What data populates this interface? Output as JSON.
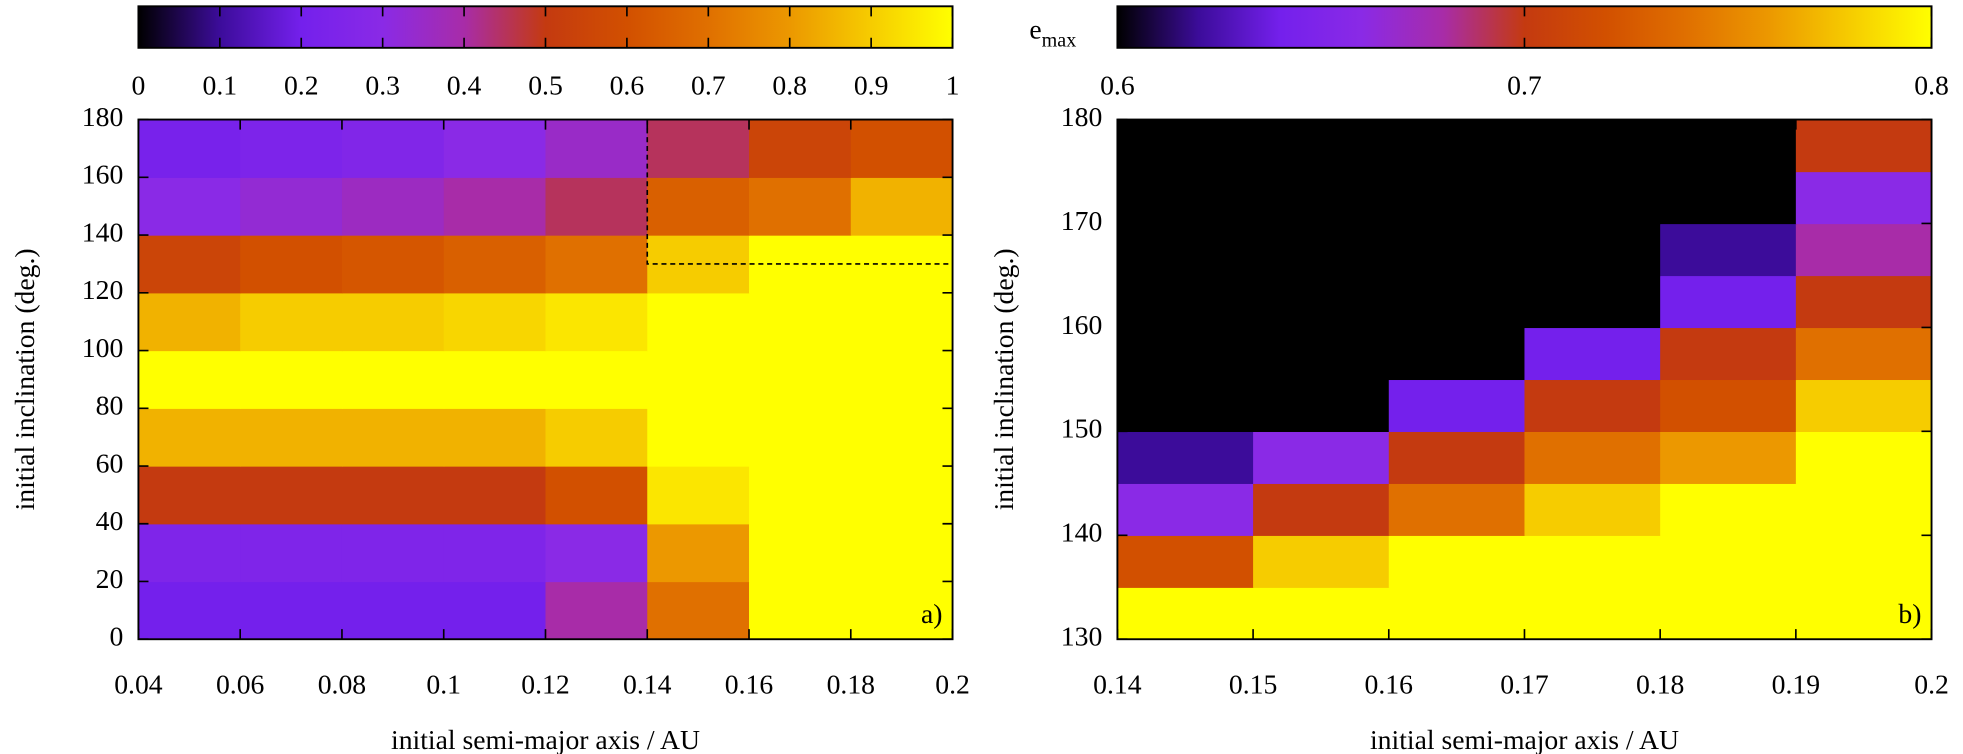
{
  "chart_data": [
    {
      "type": "heatmap",
      "x_label": "initial semi-major axis / AU",
      "y_label": "initial inclination (deg.)",
      "annotation": "a)",
      "x_bins": [
        0.04,
        0.06,
        0.08,
        0.1,
        0.12,
        0.14,
        0.16,
        0.18,
        0.2
      ],
      "y_bins": [
        0,
        20,
        40,
        60,
        80,
        100,
        120,
        140,
        160,
        180
      ],
      "z": [
        [
          0.2,
          0.2,
          0.2,
          0.2,
          0.4,
          0.7,
          1,
          1
        ],
        [
          0.25,
          0.25,
          0.25,
          0.25,
          0.3,
          0.8,
          1,
          1
        ],
        [
          0.5,
          0.5,
          0.5,
          0.5,
          0.6,
          0.95,
          1,
          1
        ],
        [
          0.85,
          0.85,
          0.85,
          0.85,
          0.9,
          1,
          1,
          1
        ],
        [
          1,
          1,
          1,
          1,
          1,
          1,
          1,
          1
        ],
        [
          0.85,
          0.9,
          0.9,
          0.92,
          0.95,
          1,
          1,
          1
        ],
        [
          0.55,
          0.6,
          0.62,
          0.65,
          0.7,
          0.9,
          1,
          1
        ],
        [
          0.3,
          0.33,
          0.36,
          0.4,
          0.45,
          0.65,
          0.7,
          0.85
        ],
        [
          0.22,
          0.24,
          0.26,
          0.3,
          0.35,
          0.45,
          0.55,
          0.6
        ]
      ],
      "xlim": [
        0.04,
        0.2
      ],
      "xticks": [
        0.04,
        0.06,
        0.08,
        0.1,
        0.12,
        0.14,
        0.16,
        0.18,
        0.2
      ],
      "ylim": [
        0,
        180
      ],
      "yticks": [
        0,
        20,
        40,
        60,
        80,
        100,
        120,
        140,
        160,
        180
      ],
      "inset_region": {
        "xlim": [
          0.14,
          0.2
        ],
        "ylim": [
          130,
          180
        ]
      },
      "colorbar_lim": [
        0,
        1
      ],
      "colorbar_ticks": [
        0,
        0.1,
        0.2,
        0.3,
        0.4,
        0.5,
        0.6,
        0.7,
        0.8,
        0.9,
        1
      ],
      "colormap": [
        "#000000",
        "#3c0c9a",
        "#7420ec",
        "#8a2ae6",
        "#a82ca8",
        "#c43a10",
        "#d25000",
        "#e07000",
        "#ec9800",
        "#f6cc00",
        "#ffff00"
      ]
    },
    {
      "type": "heatmap",
      "x_label": "initial semi-major axis / AU",
      "y_label": "initial inclination (deg.)",
      "annotation": "b)",
      "colorbar_label": {
        "base": "e",
        "subscript": "max"
      },
      "x_bins": [
        0.14,
        0.15,
        0.16,
        0.17,
        0.18,
        0.19,
        0.2
      ],
      "y_bins": [
        130,
        135,
        140,
        145,
        150,
        155,
        160,
        165,
        170,
        175,
        180
      ],
      "z": [
        [
          0.85,
          0.85,
          0.85,
          0.85,
          0.85,
          0.85
        ],
        [
          0.72,
          0.78,
          0.82,
          0.85,
          0.85,
          0.85
        ],
        [
          0.66,
          0.7,
          0.74,
          0.78,
          0.8,
          0.85
        ],
        [
          0.62,
          0.66,
          0.7,
          0.74,
          0.76,
          0.8
        ],
        [
          0.5,
          0.6,
          0.64,
          0.7,
          0.72,
          0.78
        ],
        [
          0.5,
          0.5,
          0.6,
          0.64,
          0.7,
          0.74
        ],
        [
          0.5,
          0.5,
          0.5,
          0.6,
          0.64,
          0.7
        ],
        [
          0.5,
          0.5,
          0.5,
          0.55,
          0.62,
          0.68
        ],
        [
          0.5,
          0.5,
          0.5,
          0.5,
          0.58,
          0.66
        ],
        [
          0.5,
          0.5,
          0.5,
          0.5,
          0.55,
          0.7
        ]
      ],
      "xlim": [
        0.14,
        0.2
      ],
      "xticks": [
        0.14,
        0.15,
        0.16,
        0.17,
        0.18,
        0.19,
        0.2
      ],
      "ylim": [
        130,
        180
      ],
      "yticks": [
        130,
        140,
        150,
        160,
        170,
        180
      ],
      "colorbar_lim": [
        0.6,
        0.8
      ],
      "colorbar_ticks": [
        0.6,
        0.7,
        0.8
      ],
      "colormap": [
        "#000000",
        "#3c0c9a",
        "#7420ec",
        "#8a2ae6",
        "#a82ca8",
        "#c43a10",
        "#d25000",
        "#e07000",
        "#ec9800",
        "#f6cc00",
        "#ffff00"
      ]
    }
  ]
}
